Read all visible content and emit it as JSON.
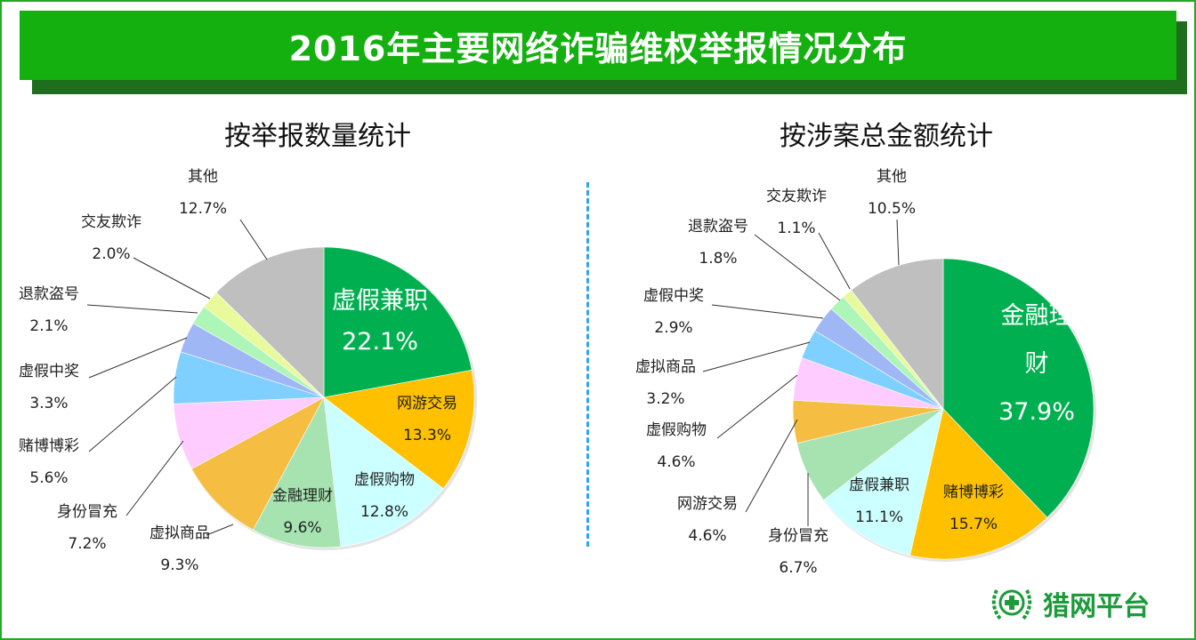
{
  "title": "2016年主要网络诈骗维权举报情况分布",
  "logo_text": "猎网平台",
  "colors": {
    "title_bar": "#13b00f",
    "divider": "#2aa8e8"
  },
  "chart_data": [
    {
      "type": "pie",
      "title": "按举报数量统计",
      "categories": [
        "虚假兼职",
        "网游交易",
        "虚假购物",
        "金融理财",
        "虚拟商品",
        "身份冒充",
        "赌博博彩",
        "虚假中奖",
        "退款盗号",
        "交友欺诈",
        "其他"
      ],
      "values": [
        22.1,
        13.3,
        12.8,
        9.6,
        9.3,
        7.2,
        5.6,
        3.3,
        2.1,
        2.0,
        12.7
      ],
      "labels": [
        "22.1%",
        "13.3%",
        "12.8%",
        "9.6%",
        "9.3%",
        "7.2%",
        "5.6%",
        "3.3%",
        "2.1%",
        "2.0%",
        "12.7%"
      ],
      "colors": [
        "#00b050",
        "#ffc000",
        "#ccffff",
        "#a6e3b0",
        "#f5bd42",
        "#ffccff",
        "#80d0ff",
        "#9fb8f5",
        "#aef5b8",
        "#e8fa9c",
        "#bfbfbf"
      ],
      "start": "top",
      "direction": "clockwise"
    },
    {
      "type": "pie",
      "title": "按涉案总金额统计",
      "categories": [
        "金融理财",
        "赌博博彩",
        "虚假兼职",
        "身份冒充",
        "网游交易",
        "虚假购物",
        "虚拟商品",
        "虚假中奖",
        "退款盗号",
        "交友欺诈",
        "其他"
      ],
      "values": [
        37.9,
        15.7,
        11.1,
        6.7,
        4.6,
        4.6,
        3.2,
        2.9,
        1.8,
        1.1,
        10.5
      ],
      "labels": [
        "37.9%",
        "15.7%",
        "11.1%",
        "6.7%",
        "4.6%",
        "4.6%",
        "3.2%",
        "2.9%",
        "1.8%",
        "1.1%",
        "10.5%"
      ],
      "colors": [
        "#00b050",
        "#ffc000",
        "#ccffff",
        "#a6e3b0",
        "#f5bd42",
        "#ffccff",
        "#80d0ff",
        "#9fb8f5",
        "#aef5b8",
        "#e8fa9c",
        "#bfbfbf"
      ],
      "start": "top",
      "direction": "clockwise"
    }
  ]
}
